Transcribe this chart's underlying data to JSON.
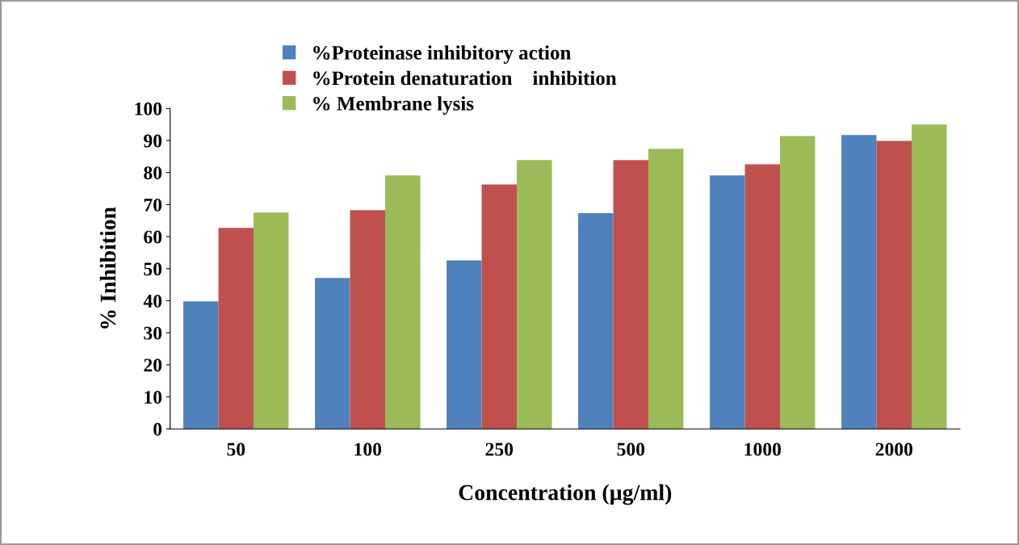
{
  "chart_data": {
    "type": "bar",
    "xlabel": "Concentration (µg/ml)",
    "ylabel": "% Inhibition",
    "categories": [
      "50",
      "100",
      "250",
      "500",
      "1000",
      "2000"
    ],
    "series": [
      {
        "name": "%Proteinase inhibitory action",
        "color": "#4f81bd",
        "values": [
          39.8,
          47.1,
          52.6,
          67.3,
          79.1,
          91.7
        ]
      },
      {
        "name": "%Protein denaturation    inhibition",
        "color": "#c0504d",
        "values": [
          62.7,
          68.3,
          76.3,
          83.9,
          82.6,
          89.9
        ]
      },
      {
        "name": "% Membrane lysis",
        "color": "#9bbb59",
        "values": [
          67.5,
          79.1,
          83.9,
          87.4,
          91.4,
          95.0
        ]
      }
    ],
    "ylim": [
      0,
      100
    ],
    "yticks": [
      0,
      10,
      20,
      30,
      40,
      50,
      60,
      70,
      80,
      90,
      100
    ],
    "grid": false,
    "legend": "top"
  }
}
